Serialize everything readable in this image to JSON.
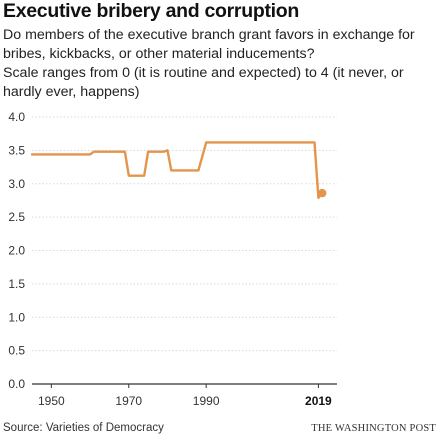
{
  "chart_data": {
    "type": "line",
    "title": "Executive bribery and corruption",
    "subtitle": [
      "Do members of the executive branch grant favors in exchange for bribes, kickbacks, or other material inducements?",
      "Scale ranges from 0 (it is routine and expected) to 4 (it never, or hardly ever, happens)"
    ],
    "xlabel": "",
    "ylabel": "",
    "xlim": [
      1945,
      2022
    ],
    "ylim": [
      0,
      4
    ],
    "x_ticks": [
      {
        "value": 1950,
        "label": "1950",
        "bold": false
      },
      {
        "value": 1970,
        "label": "1970",
        "bold": false
      },
      {
        "value": 1990,
        "label": "1990",
        "bold": false
      },
      {
        "value": 2019,
        "label": "2019",
        "bold": true
      }
    ],
    "y_ticks": [
      {
        "value": 0,
        "label": "0.0"
      },
      {
        "value": 0.5,
        "label": "0.5"
      },
      {
        "value": 1,
        "label": "1.0"
      },
      {
        "value": 1.5,
        "label": "1.5"
      },
      {
        "value": 2,
        "label": "2.0"
      },
      {
        "value": 2.5,
        "label": "2.5"
      },
      {
        "value": 3,
        "label": "3.0"
      },
      {
        "value": 3.5,
        "label": "3.5"
      },
      {
        "value": 4,
        "label": "4.0"
      }
    ],
    "grid": true,
    "series": [
      {
        "color": "#e3954b",
        "x": [
          1945,
          1960,
          1961,
          1969,
          1970,
          1974,
          1975,
          1979,
          1980,
          1981,
          1988,
          1990,
          2018,
          2019
        ],
        "y": [
          3.44,
          3.44,
          3.48,
          3.48,
          3.12,
          3.12,
          3.48,
          3.48,
          3.5,
          3.2,
          3.2,
          3.62,
          3.62,
          2.79
        ]
      }
    ],
    "endpoint": {
      "x": 2020,
      "y": 2.86,
      "color": "#e3954b"
    }
  },
  "footer": {
    "source": "Source: Varieties of Democracy",
    "credit": "THE WASHINGTON POST"
  }
}
